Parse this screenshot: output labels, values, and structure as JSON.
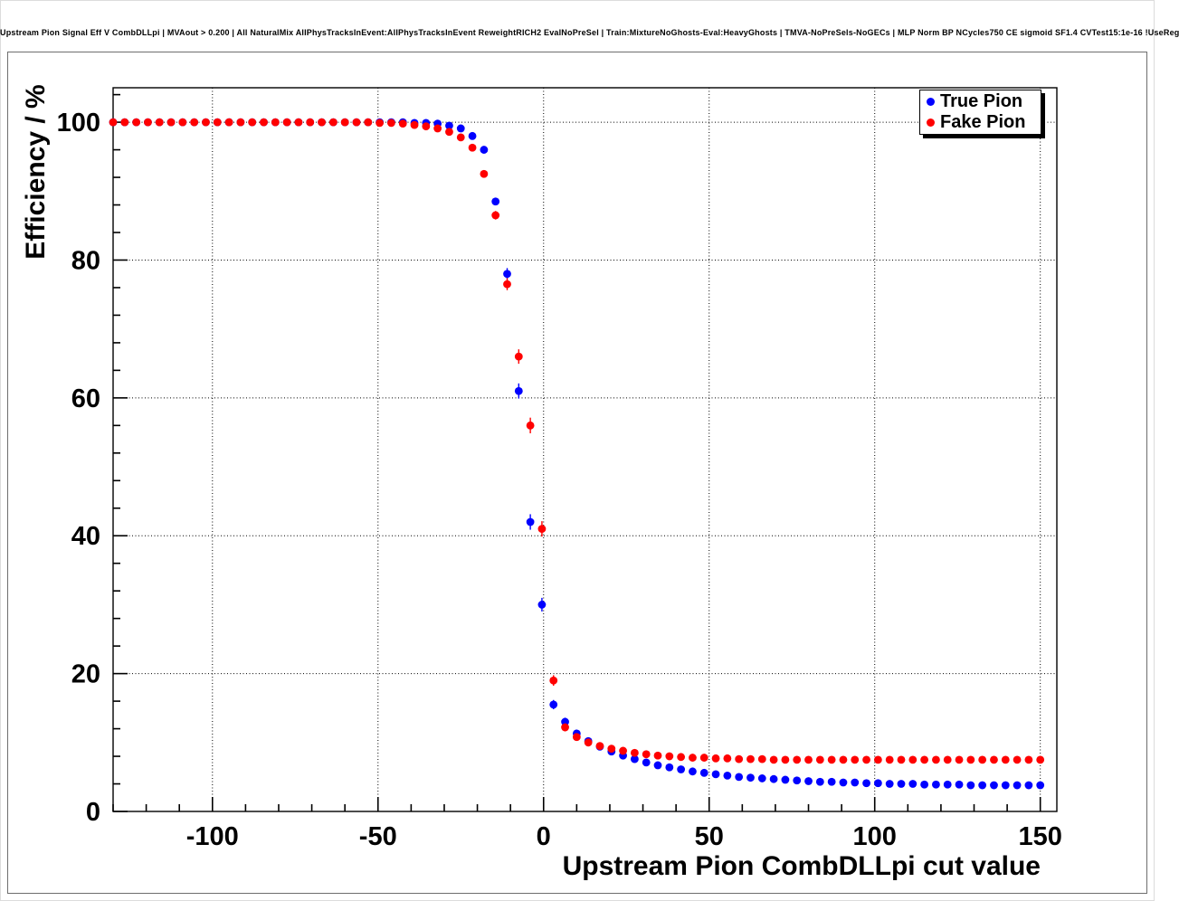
{
  "page": {
    "title": "Upstream Pion Signal Eff V CombDLLpi | MVAout > 0.200 | All NaturalMix AllPhysTracksInEvent:AllPhysTracksInEvent ReweightRICH2 EvalNoPreSel | Train:MixtureNoGhosts-Eval:HeavyGhosts | TMVA-NoPreSels-NoGECs | MLP Norm BP NCycles750 CE sigmoid SF1.4 CVTest15:1e-16 !UseReg"
  },
  "legend": {
    "items": [
      {
        "label": "True Pion",
        "color": "#0000ff"
      },
      {
        "label": "Fake Pion",
        "color": "#ff0000"
      }
    ]
  },
  "chart_data": {
    "type": "scatter",
    "marker": "filled-circle",
    "title": "Upstream Pion Signal Eff V CombDLLpi | MVAout > 0.200 | All NaturalMix AllPhysTracksInEvent:AllPhysTracksInEvent ReweightRICH2 EvalNoPreSel | Train:MixtureNoGhosts-Eval:HeavyGhosts | TMVA-NoPreSels-NoGECs | MLP Norm BP NCycles750 CE sigmoid SF1.4 CVTest15:1e-16 !UseReg",
    "xlabel": "Upstream Pion CombDLLpi cut value",
    "ylabel": "Efficiency / %",
    "xlim": [
      -130,
      155
    ],
    "ylim": [
      0,
      105
    ],
    "x_ticks": [
      -100,
      -50,
      0,
      50,
      100,
      150
    ],
    "y_ticks": [
      0,
      20,
      40,
      60,
      80,
      100
    ],
    "x_minor_step": 10,
    "y_minor_step": 4,
    "grid": "dotted",
    "legend_position": "top-right",
    "x": [
      -130,
      -126.5,
      -123,
      -119.5,
      -116,
      -112.5,
      -109,
      -105.5,
      -102,
      -98.5,
      -95,
      -91.5,
      -88,
      -84.5,
      -81,
      -77.5,
      -74,
      -70.5,
      -67,
      -63.5,
      -60,
      -56.5,
      -53,
      -49.5,
      -46,
      -42.5,
      -39,
      -35.5,
      -32,
      -28.5,
      -25,
      -21.5,
      -18,
      -14.5,
      -11,
      -7.5,
      -4,
      -0.5,
      3,
      6.5,
      10,
      13.5,
      17,
      20.5,
      24,
      27.5,
      31,
      34.5,
      38,
      41.5,
      45,
      48.5,
      52,
      55.5,
      59,
      62.5,
      66,
      69.5,
      73,
      76.5,
      80,
      83.5,
      87,
      90.5,
      94,
      97.5,
      101,
      104.5,
      108,
      111.5,
      115,
      118.5,
      122,
      125.5,
      129,
      132.5,
      136,
      139.5,
      143,
      146.5,
      150
    ],
    "series": [
      {
        "name": "True Pion",
        "color": "#0000ff",
        "values": [
          100,
          100,
          100,
          100,
          100,
          100,
          100,
          100,
          100,
          100,
          100,
          100,
          100,
          100,
          100,
          100,
          100,
          100,
          100,
          100,
          100,
          100,
          100,
          100,
          100,
          100,
          99.9,
          99.9,
          99.8,
          99.5,
          99.1,
          98.0,
          96.0,
          88.5,
          78.0,
          61.0,
          42.0,
          30.0,
          15.5,
          13.0,
          11.3,
          10.2,
          9.4,
          8.7,
          8.1,
          7.6,
          7.1,
          6.7,
          6.4,
          6.1,
          5.8,
          5.6,
          5.4,
          5.2,
          5.0,
          4.9,
          4.8,
          4.7,
          4.6,
          4.5,
          4.4,
          4.3,
          4.3,
          4.2,
          4.2,
          4.1,
          4.1,
          4.0,
          4.0,
          4.0,
          3.9,
          3.9,
          3.9,
          3.9,
          3.8,
          3.8,
          3.8,
          3.8,
          3.8,
          3.8,
          3.8
        ]
      },
      {
        "name": "Fake Pion",
        "color": "#ff0000",
        "values": [
          100,
          100,
          100,
          100,
          100,
          100,
          100,
          100,
          100,
          100,
          100,
          100,
          100,
          100,
          100,
          100,
          100,
          100,
          100,
          100,
          100,
          100,
          100,
          99.9,
          99.9,
          99.8,
          99.6,
          99.4,
          99.1,
          98.6,
          97.8,
          96.3,
          92.5,
          86.5,
          76.5,
          66.0,
          56.0,
          41.0,
          19.0,
          12.2,
          10.8,
          10.0,
          9.5,
          9.1,
          8.8,
          8.5,
          8.3,
          8.1,
          8.0,
          7.9,
          7.8,
          7.8,
          7.7,
          7.7,
          7.6,
          7.6,
          7.6,
          7.5,
          7.5,
          7.5,
          7.5,
          7.5,
          7.5,
          7.5,
          7.5,
          7.5,
          7.5,
          7.5,
          7.5,
          7.5,
          7.5,
          7.5,
          7.5,
          7.5,
          7.5,
          7.5,
          7.5,
          7.5,
          7.5,
          7.5,
          7.5
        ]
      }
    ]
  }
}
